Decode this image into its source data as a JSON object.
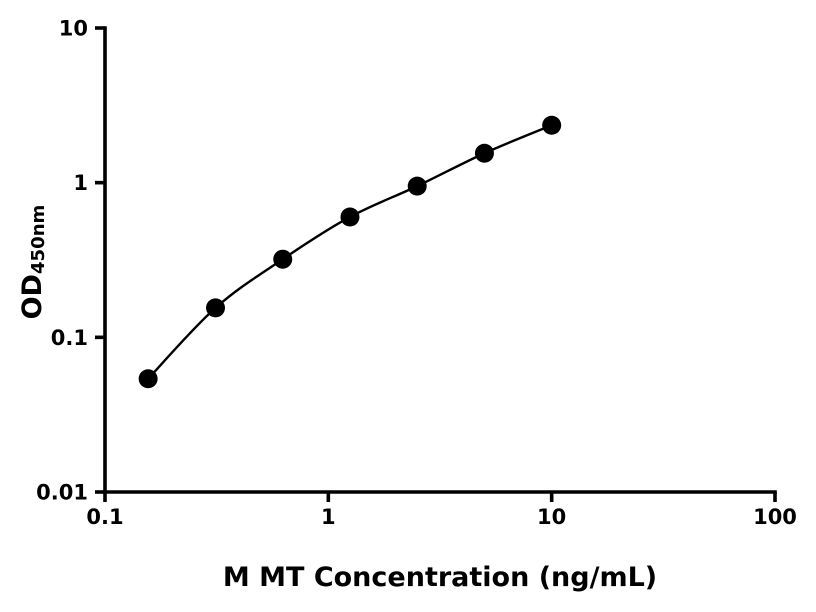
{
  "chart_data": {
    "type": "scatter",
    "title": "",
    "xlabel": "M MT Concentration (ng/mL)",
    "ylabel": "OD",
    "ylabel_subscript": "450nm",
    "x_scale": "log",
    "y_scale": "log",
    "xlim": [
      0.1,
      100
    ],
    "ylim": [
      0.01,
      10
    ],
    "x_ticks": [
      0.1,
      1,
      10,
      100
    ],
    "x_tick_labels": [
      "0.1",
      "1",
      "10",
      "100"
    ],
    "y_ticks": [
      0.01,
      0.1,
      1,
      10
    ],
    "y_tick_labels": [
      "0.01",
      "0.1",
      "1",
      "10"
    ],
    "x": [
      0.156,
      0.3125,
      0.625,
      1.25,
      2.5,
      5,
      10
    ],
    "y": [
      0.054,
      0.155,
      0.32,
      0.6,
      0.95,
      1.55,
      2.35
    ],
    "marker_color": "#000000",
    "line_color": "#000000",
    "axis_color": "#000000",
    "grid": false,
    "legend": false
  }
}
